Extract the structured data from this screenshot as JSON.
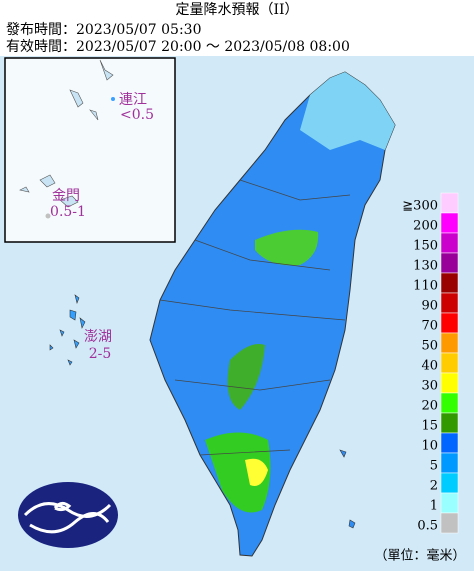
{
  "header": {
    "title": "定量降水預報（II）",
    "issued": "發布時間：2023/05/07 05:30",
    "valid": "有效時間：2023/05/07 20:00 ～ 2023/05/08 08:00"
  },
  "islands": [
    {
      "name": "連江",
      "amount": "<0.5"
    },
    {
      "name": "金門",
      "amount": "0.5-1"
    },
    {
      "name": "澎湖",
      "amount": "2-5"
    }
  ],
  "legend": {
    "unit": "（單位：毫米）",
    "items": [
      {
        "label": "≧300",
        "color": "#ffccff"
      },
      {
        "label": "200",
        "color": "#ff00ff"
      },
      {
        "label": "150",
        "color": "#cc00cc"
      },
      {
        "label": "130",
        "color": "#990099"
      },
      {
        "label": "110",
        "color": "#990000"
      },
      {
        "label": "90",
        "color": "#cc0000"
      },
      {
        "label": "70",
        "color": "#ff0000"
      },
      {
        "label": "50",
        "color": "#ff9900"
      },
      {
        "label": "40",
        "color": "#ffcc00"
      },
      {
        "label": "30",
        "color": "#ffff00"
      },
      {
        "label": "20",
        "color": "#33ff00"
      },
      {
        "label": "15",
        "color": "#339900"
      },
      {
        "label": "10",
        "color": "#0066ff"
      },
      {
        "label": "5",
        "color": "#0099ff"
      },
      {
        "label": "2",
        "color": "#00ccff"
      },
      {
        "label": "1",
        "color": "#99ffff"
      },
      {
        "label": "0.5",
        "color": "#c1c1c1"
      }
    ]
  }
}
